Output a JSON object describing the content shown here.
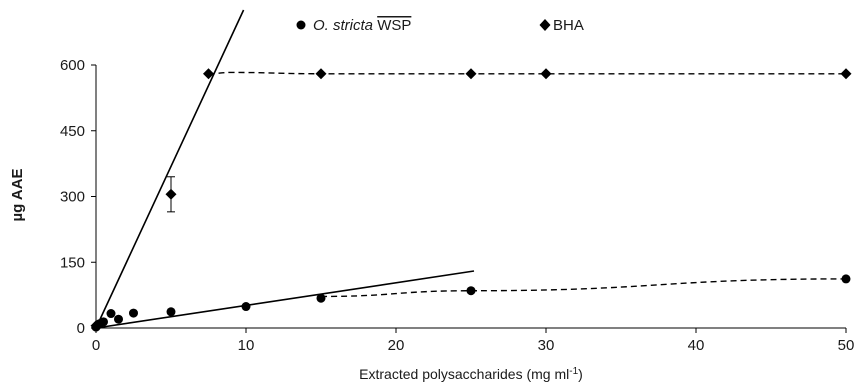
{
  "chart_data": {
    "type": "scatter",
    "title": "",
    "xlabel": "Extracted polysaccharides (mg ml",
    "xlabel_sup": "-1",
    "xlabel_end": ")",
    "ylabel": "µg AAE",
    "xlim": [
      0,
      50
    ],
    "ylim": [
      0,
      600
    ],
    "xticks": [
      0,
      10,
      20,
      30,
      40,
      50
    ],
    "yticks": [
      0,
      150,
      300,
      450,
      600
    ],
    "grid": false,
    "legend_position": "top-center",
    "series": [
      {
        "name": "O. stricta",
        "name_suffix": "WSP",
        "marker": "circle",
        "color": "#000000",
        "x": [
          0,
          0.1,
          0.25,
          0.5,
          1,
          1.5,
          2.5,
          5,
          10,
          15,
          25,
          50
        ],
        "y": [
          2,
          6,
          10,
          14,
          33,
          20,
          34,
          37,
          49,
          68,
          85,
          112
        ],
        "trend_line": {
          "x": [
            0,
            25.2
          ],
          "y": [
            0,
            130
          ]
        },
        "dashed_line": {
          "x": [
            15,
            25,
            50
          ],
          "y": [
            72,
            85,
            112
          ]
        }
      },
      {
        "name": "BHA",
        "marker": "diamond",
        "color": "#000000",
        "x": [
          0,
          5,
          7.5,
          15,
          25,
          30,
          50
        ],
        "y": [
          5,
          305,
          580,
          580,
          580,
          580,
          580
        ],
        "error": [
          {
            "x": 5,
            "y": 305,
            "low": 265,
            "high": 345
          }
        ],
        "trend_line": {
          "x": [
            0,
            9.9
          ],
          "y": [
            0,
            730
          ]
        },
        "dashed_line": {
          "x": [
            7.5,
            9,
            15,
            30,
            50
          ],
          "y": [
            580,
            583,
            580,
            580,
            580
          ]
        }
      }
    ]
  }
}
